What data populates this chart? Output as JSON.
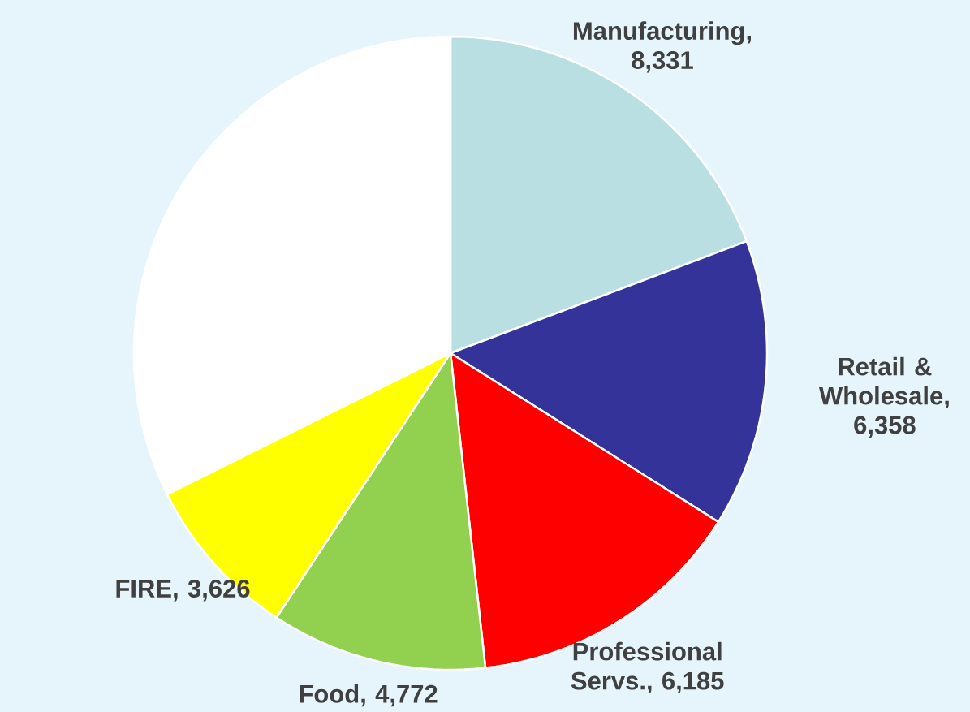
{
  "chart_data": {
    "type": "pie",
    "categories": [
      "Manufacturing, 8,331",
      "Retail & Wholesale, 6,358",
      "Professional Servs., 6,185",
      "Food, 4,772",
      "FIRE, 3,626",
      null
    ],
    "values": [
      8331,
      6358,
      6185,
      4772,
      3626,
      14000
    ],
    "colors": [
      "#b9dfe2",
      "#333399",
      "#ff0000",
      "#92d050",
      "#ffff00",
      "#ffffff"
    ]
  }
}
